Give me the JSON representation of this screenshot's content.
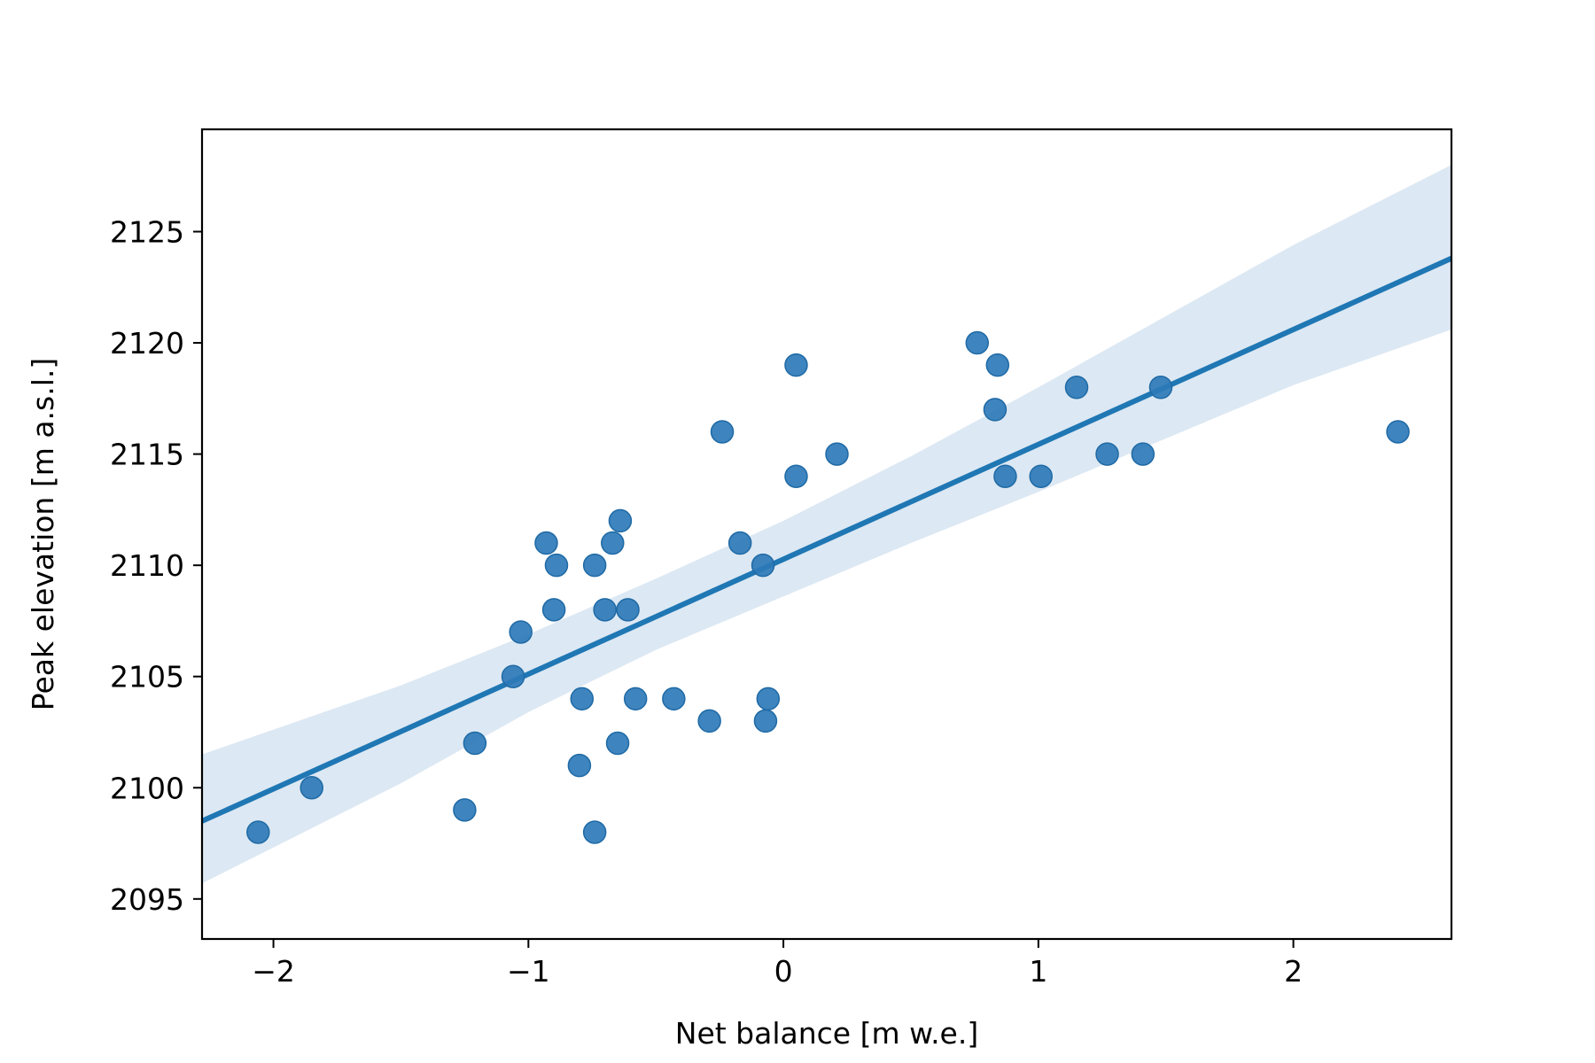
{
  "chart_data": {
    "type": "scatter",
    "title": "",
    "xlabel": "Net balance [m w.e.]",
    "ylabel": "Peak elevation [m a.s.l.]",
    "xlim": [
      -2.28,
      2.62
    ],
    "ylim": [
      2093.2,
      2129.6
    ],
    "x_ticks": [
      -2,
      -1,
      0,
      1,
      2
    ],
    "x_tick_labels": [
      "−2",
      "−1",
      "0",
      "1",
      "2"
    ],
    "y_ticks": [
      2095,
      2100,
      2105,
      2110,
      2115,
      2120,
      2125
    ],
    "y_tick_labels": [
      "2095",
      "2100",
      "2105",
      "2110",
      "2115",
      "2120",
      "2125"
    ],
    "grid": false,
    "colors": {
      "points": "#2e7ab8",
      "point_edge": "#1f6aa5",
      "regression_line": "#1f77b4",
      "confidence_band": "#dce8f3"
    },
    "points": [
      {
        "x": -2.06,
        "y": 2098
      },
      {
        "x": -1.85,
        "y": 2100
      },
      {
        "x": -1.25,
        "y": 2099
      },
      {
        "x": -1.21,
        "y": 2102
      },
      {
        "x": -1.06,
        "y": 2105
      },
      {
        "x": -1.03,
        "y": 2107
      },
      {
        "x": -0.93,
        "y": 2111
      },
      {
        "x": -0.9,
        "y": 2108
      },
      {
        "x": -0.89,
        "y": 2110
      },
      {
        "x": -0.8,
        "y": 2101
      },
      {
        "x": -0.79,
        "y": 2104
      },
      {
        "x": -0.74,
        "y": 2110
      },
      {
        "x": -0.74,
        "y": 2098
      },
      {
        "x": -0.7,
        "y": 2108
      },
      {
        "x": -0.67,
        "y": 2111
      },
      {
        "x": -0.65,
        "y": 2102
      },
      {
        "x": -0.64,
        "y": 2112
      },
      {
        "x": -0.61,
        "y": 2108
      },
      {
        "x": -0.58,
        "y": 2104
      },
      {
        "x": -0.43,
        "y": 2104
      },
      {
        "x": -0.29,
        "y": 2103
      },
      {
        "x": -0.24,
        "y": 2116
      },
      {
        "x": -0.17,
        "y": 2111
      },
      {
        "x": -0.08,
        "y": 2110
      },
      {
        "x": -0.07,
        "y": 2103
      },
      {
        "x": -0.06,
        "y": 2104
      },
      {
        "x": 0.05,
        "y": 2119
      },
      {
        "x": 0.05,
        "y": 2114
      },
      {
        "x": 0.21,
        "y": 2115
      },
      {
        "x": 0.76,
        "y": 2120
      },
      {
        "x": 0.83,
        "y": 2117
      },
      {
        "x": 0.84,
        "y": 2119
      },
      {
        "x": 0.87,
        "y": 2114
      },
      {
        "x": 1.01,
        "y": 2114
      },
      {
        "x": 1.15,
        "y": 2118
      },
      {
        "x": 1.27,
        "y": 2115
      },
      {
        "x": 1.41,
        "y": 2115
      },
      {
        "x": 1.48,
        "y": 2118
      },
      {
        "x": 2.41,
        "y": 2116
      }
    ],
    "regression_line": [
      {
        "x": -2.28,
        "y": 2098.5
      },
      {
        "x": 2.62,
        "y": 2123.8
      }
    ],
    "confidence_band": {
      "upper": [
        {
          "x": -2.28,
          "y": 2101.5
        },
        {
          "x": -1.5,
          "y": 2104.6
        },
        {
          "x": -1.0,
          "y": 2106.9
        },
        {
          "x": -0.5,
          "y": 2109.4
        },
        {
          "x": 0.0,
          "y": 2112.0
        },
        {
          "x": 0.5,
          "y": 2114.9
        },
        {
          "x": 1.0,
          "y": 2118.0
        },
        {
          "x": 1.5,
          "y": 2121.2
        },
        {
          "x": 2.0,
          "y": 2124.4
        },
        {
          "x": 2.62,
          "y": 2128.0
        }
      ],
      "lower": [
        {
          "x": -2.28,
          "y": 2095.7
        },
        {
          "x": -1.5,
          "y": 2100.2
        },
        {
          "x": -1.0,
          "y": 2103.4
        },
        {
          "x": -0.5,
          "y": 2106.2
        },
        {
          "x": 0.0,
          "y": 2108.6
        },
        {
          "x": 0.5,
          "y": 2111.0
        },
        {
          "x": 1.0,
          "y": 2113.3
        },
        {
          "x": 1.5,
          "y": 2115.7
        },
        {
          "x": 2.0,
          "y": 2118.1
        },
        {
          "x": 2.62,
          "y": 2120.6
        }
      ]
    }
  }
}
